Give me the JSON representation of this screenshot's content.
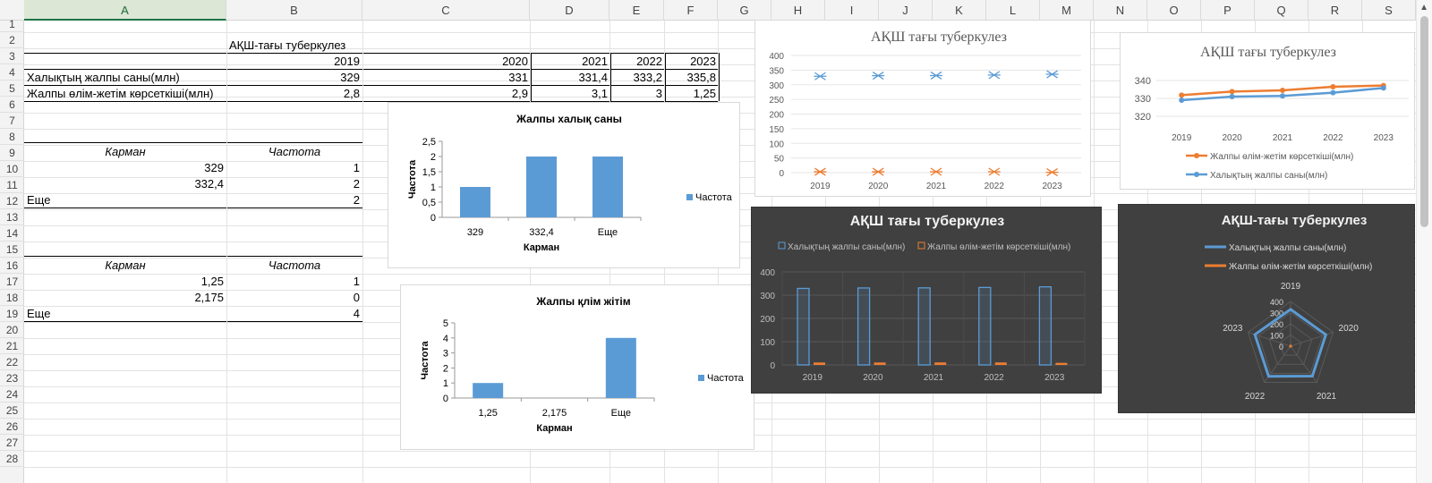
{
  "columns": [
    "A",
    "B",
    "C",
    "D",
    "E",
    "F",
    "G",
    "H",
    "I",
    "J",
    "K",
    "L",
    "M",
    "N",
    "O",
    "P",
    "Q",
    "R",
    "S"
  ],
  "rows": [
    "1",
    "2",
    "3",
    "4",
    "5",
    "6",
    "7",
    "8",
    "9",
    "10",
    "11",
    "12",
    "13",
    "14",
    "15",
    "16",
    "17",
    "18",
    "19",
    "20",
    "21",
    "22",
    "23",
    "24",
    "25",
    "26",
    "27",
    "28"
  ],
  "sheet": {
    "title": "АҚШ-тағы туберкулез",
    "years": [
      "2019",
      "2020",
      "2021",
      "2022",
      "2023"
    ],
    "row4_label": "Халықтың жалпы саны(млн)",
    "row4_values": [
      "329",
      "331",
      "331,4",
      "333,2",
      "335,8"
    ],
    "row5_label": "Жалпы өлім-жетім көрсеткіші(млн)",
    "row5_values": [
      "2,8",
      "2,9",
      "3,1",
      "3",
      "1,25"
    ],
    "hist1": {
      "head_bin": "Карман",
      "head_freq": "Частота",
      "rows": [
        [
          "329",
          "1"
        ],
        [
          "332,4",
          "2"
        ],
        [
          "Еще",
          "2"
        ]
      ]
    },
    "hist2": {
      "head_bin": "Карман",
      "head_freq": "Частота",
      "rows": [
        [
          "1,25",
          "1"
        ],
        [
          "2,175",
          "0"
        ],
        [
          "Еще",
          "4"
        ]
      ]
    }
  },
  "charts": {
    "hist1": {
      "title": "Жалпы халық саны",
      "xlabel": "Карман",
      "ylabel": "Частота",
      "legend": "Частота",
      "color": "#5b9bd5"
    },
    "hist2": {
      "title": "Жалпы қлім жітім",
      "xlabel": "Карман",
      "ylabel": "Частота",
      "legend": "Частота",
      "color": "#5b9bd5"
    },
    "scatter": {
      "title": "АҚШ тағы туберкулез"
    },
    "line": {
      "title": "АҚШ тағы туберкулез",
      "legend": [
        "Жалпы өлім-жетім көрсеткіші(млн)",
        "Халықтың жалпы саны(млн)"
      ]
    },
    "darkbar": {
      "title": "АҚШ тағы туберкулез",
      "legend": [
        "Халықтың жалпы саны(млн)",
        "Жалпы өлім-жетім көрсеткіші(млн)"
      ]
    },
    "radar": {
      "title": "АҚШ-тағы туберкулез",
      "legend": [
        "Халықтың жалпы саны(млн)",
        "Жалпы өлім-жетім көрсеткіші(млн)"
      ]
    }
  },
  "chart_data": [
    {
      "type": "bar",
      "title": "Жалпы халық саны",
      "xlabel": "Карман",
      "ylabel": "Частота",
      "categories": [
        "329",
        "332,4",
        "Еще"
      ],
      "series": [
        {
          "name": "Частота",
          "values": [
            1,
            2,
            2
          ]
        }
      ],
      "ylim": [
        0,
        2.5
      ],
      "yticks": [
        "0",
        "0,5",
        "1",
        "1,5",
        "2",
        "2,5"
      ],
      "legend_position": "right"
    },
    {
      "type": "bar",
      "title": "Жалпы қлім жітім",
      "xlabel": "Карман",
      "ylabel": "Частота",
      "categories": [
        "1,25",
        "2,175",
        "Еще"
      ],
      "series": [
        {
          "name": "Частота",
          "values": [
            1,
            0,
            4
          ]
        }
      ],
      "ylim": [
        0,
        5
      ],
      "yticks": [
        "0",
        "1",
        "2",
        "3",
        "4",
        "5"
      ],
      "legend_position": "right"
    },
    {
      "type": "scatter",
      "title": "АҚШ тағы туберкулез",
      "categories": [
        "2019",
        "2020",
        "2021",
        "2022",
        "2023"
      ],
      "series": [
        {
          "values": [
            329,
            331,
            331.4,
            333.2,
            335.8
          ],
          "color": "#5b9bd5"
        },
        {
          "values": [
            2.8,
            2.9,
            3.1,
            3,
            1.25
          ],
          "color": "#ed7d31"
        }
      ],
      "ylim": [
        0,
        400
      ],
      "yticks": [
        "0",
        "50",
        "100",
        "150",
        "200",
        "250",
        "300",
        "350",
        "400"
      ]
    },
    {
      "type": "line",
      "title": "АҚШ тағы туберкулез",
      "categories": [
        "2019",
        "2020",
        "2021",
        "2022",
        "2023"
      ],
      "series": [
        {
          "name": "Жалпы өлім-жетім көрсеткіші(млн)",
          "values": [
            331.8,
            333.8,
            334.5,
            336.5,
            337.2
          ],
          "color": "#ed7d31"
        },
        {
          "name": "Халықтың жалпы саны(млн)",
          "values": [
            329,
            331,
            331.4,
            333.2,
            335.8
          ],
          "color": "#5b9bd5"
        }
      ],
      "ylim": [
        315,
        345
      ],
      "yticks": [
        "320",
        "330",
        "340"
      ],
      "legend_position": "bottom"
    },
    {
      "type": "bar",
      "title": "АҚШ тағы туберкулез",
      "categories": [
        "2019",
        "2020",
        "2021",
        "2022",
        "2023"
      ],
      "series": [
        {
          "name": "Халықтың жалпы саны(млн)",
          "values": [
            329,
            331,
            331.4,
            333.2,
            335.8
          ],
          "color": "#5b9bd5"
        },
        {
          "name": "Жалпы өлім-жетім көрсеткіші(млн)",
          "values": [
            2.8,
            2.9,
            3.1,
            3,
            1.25
          ],
          "color": "#ed7d31"
        }
      ],
      "ylim": [
        0,
        400
      ],
      "yticks": [
        "0",
        "100",
        "200",
        "300",
        "400"
      ],
      "legend_position": "top"
    },
    {
      "type": "radar",
      "title": "АҚШ-тағы туберкулез",
      "categories": [
        "2019",
        "2020",
        "2021",
        "2022",
        "2023"
      ],
      "series": [
        {
          "name": "Халықтың жалпы саны(млн)",
          "values": [
            329,
            331,
            331.4,
            333.2,
            335.8
          ],
          "color": "#5b9bd5"
        },
        {
          "name": "Жалпы өлім-жетім көрсеткіші(млн)",
          "values": [
            2.8,
            2.9,
            3.1,
            3,
            1.25
          ],
          "color": "#ed7d31"
        }
      ],
      "ylim": [
        0,
        400
      ],
      "yticks": [
        "0",
        "100",
        "200",
        "300",
        "400"
      ],
      "legend_position": "top"
    }
  ],
  "colors": {
    "accent": "#217346",
    "blue": "#5b9bd5",
    "orange": "#ed7d31"
  }
}
